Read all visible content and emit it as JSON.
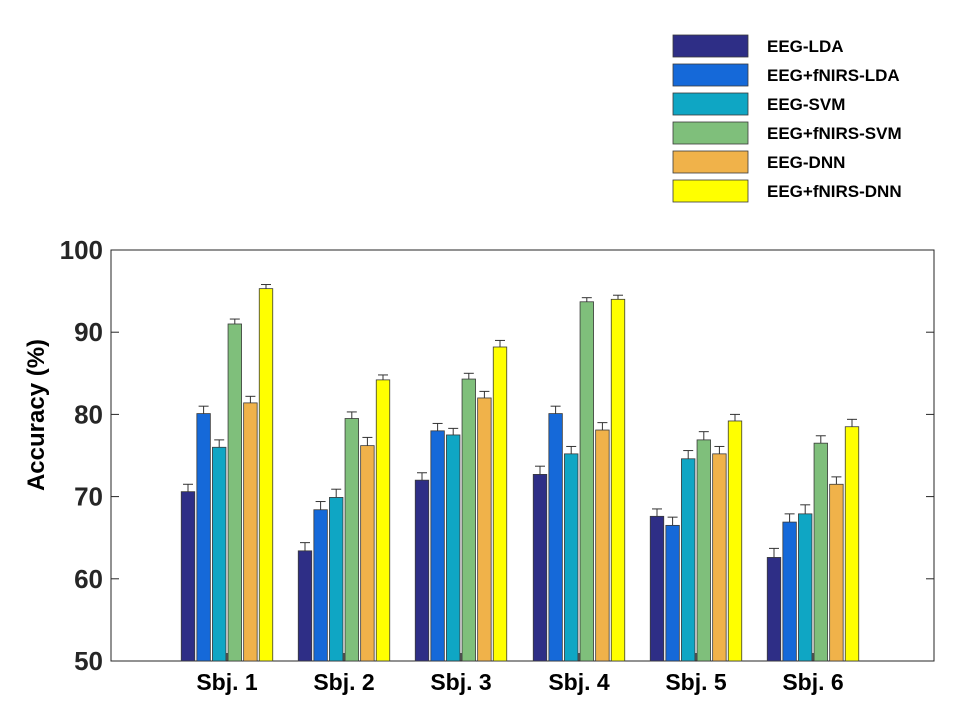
{
  "chart_data": {
    "type": "bar",
    "title": "",
    "xlabel": "",
    "ylabel": "Accuracy (%)",
    "ylim": [
      50,
      100
    ],
    "yticks": [
      50,
      60,
      70,
      80,
      90,
      100
    ],
    "grid": false,
    "legend_position": "top-right",
    "categories": [
      "Sbj. 1",
      "Sbj. 2",
      "Sbj. 3",
      "Sbj. 4",
      "Sbj. 5",
      "Sbj. 6"
    ],
    "series": [
      {
        "name": "EEG-LDA",
        "color": "#2e2e86",
        "values": [
          70.6,
          63.4,
          72.0,
          72.7,
          67.6,
          62.6
        ],
        "errors": [
          0.9,
          1.0,
          0.9,
          1.0,
          0.9,
          1.1
        ]
      },
      {
        "name": "EEG+fNIRS-LDA",
        "color": "#1569d9",
        "values": [
          80.1,
          68.4,
          78.0,
          80.1,
          66.5,
          66.9
        ],
        "errors": [
          0.9,
          1.0,
          0.9,
          0.9,
          1.0,
          1.0
        ]
      },
      {
        "name": "EEG-SVM",
        "color": "#0fa6c4",
        "values": [
          76.0,
          69.9,
          77.5,
          75.2,
          74.6,
          67.9
        ],
        "errors": [
          0.9,
          1.0,
          0.8,
          0.9,
          1.0,
          1.1
        ]
      },
      {
        "name": "EEG+fNIRS-SVM",
        "color": "#7fbf7b",
        "values": [
          91.0,
          79.5,
          84.3,
          93.7,
          76.9,
          76.5
        ],
        "errors": [
          0.6,
          0.8,
          0.7,
          0.5,
          1.0,
          0.9
        ]
      },
      {
        "name": "EEG-DNN",
        "color": "#f0b24a",
        "values": [
          81.4,
          76.2,
          82.0,
          78.1,
          75.2,
          71.5
        ],
        "errors": [
          0.8,
          1.0,
          0.8,
          0.9,
          0.9,
          0.9
        ]
      },
      {
        "name": "EEG+fNIRS-DNN",
        "color": "#ffff00",
        "values": [
          95.3,
          84.2,
          88.2,
          94.0,
          79.2,
          78.5
        ],
        "errors": [
          0.5,
          0.6,
          0.8,
          0.5,
          0.8,
          0.9
        ]
      }
    ]
  }
}
